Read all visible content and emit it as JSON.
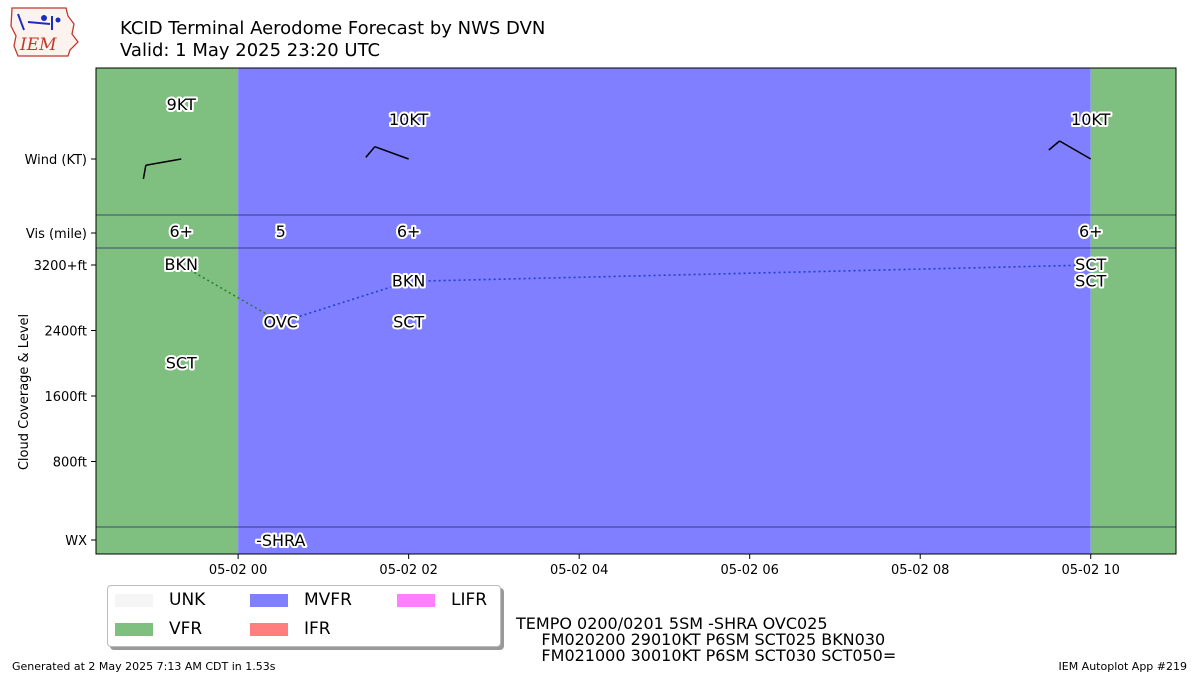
{
  "header": {
    "title": "KCID Terminal Aerodome Forecast by NWS DVN",
    "subtitle": "Valid: 1 May 2025 23:20 UTC",
    "logo_text": "IEM"
  },
  "legend": {
    "items": [
      {
        "label": "UNK",
        "color": "#f5f5f5"
      },
      {
        "label": "VFR",
        "color": "#7fbf7f"
      },
      {
        "label": "MVFR",
        "color": "#7f7fff"
      },
      {
        "label": "IFR",
        "color": "#ff7f7f"
      },
      {
        "label": "LIFR",
        "color": "#ff7fff"
      }
    ]
  },
  "taf_text": {
    "line1": "TEMPO 0200/0201 5SM -SHRA OVC025",
    "line2": "     FM020200 29010KT P6SM SCT025 BKN030",
    "line3": "     FM021000 30010KT P6SM SCT030 SCT050="
  },
  "footer": {
    "left": "Generated at 2 May 2025 7:13 AM CDT in 1.53s",
    "right": "IEM Autoplot App #219"
  },
  "chart_data": {
    "type": "timeline",
    "x_range": [
      "2025-05-01 22:20 UTC",
      "2025-05-02 11:00 UTC"
    ],
    "x_tick_labels": [
      "05-02 00",
      "05-02 02",
      "05-02 04",
      "05-02 06",
      "05-02 08",
      "05-02 10"
    ],
    "x_tick_hours": [
      0,
      2,
      4,
      6,
      8,
      10
    ],
    "x_min_hour": -1.667,
    "x_max_hour": 11.0,
    "rows": {
      "wind_label": "Wind (KT)",
      "vis_label": "Vis (mile)",
      "wx_label": "WX",
      "cloud_label": "Cloud Coverage & Level"
    },
    "cloud_y_ticks": [
      {
        "value": 800,
        "label": "800ft"
      },
      {
        "value": 1600,
        "label": "1600ft"
      },
      {
        "value": 2400,
        "label": "2400ft"
      },
      {
        "value": 3200,
        "label": "3200+ft"
      }
    ],
    "flight_category_periods": [
      {
        "start_hour": -1.667,
        "end_hour": 0,
        "category": "VFR"
      },
      {
        "start_hour": 0,
        "end_hour": 10,
        "category": "MVFR"
      },
      {
        "start_hour": 10,
        "end_hour": 11.0,
        "category": "VFR"
      }
    ],
    "wind": [
      {
        "hour": -0.667,
        "direction": 260,
        "speed_kt": 9,
        "label": "9KT"
      },
      {
        "hour": 2,
        "direction": 290,
        "speed_kt": 10,
        "label": "10KT"
      },
      {
        "hour": 10,
        "direction": 300,
        "speed_kt": 10,
        "label": "10KT"
      }
    ],
    "visibility": [
      {
        "hour": -0.667,
        "label": "6+"
      },
      {
        "hour": 0.5,
        "label": "5"
      },
      {
        "hour": 2,
        "label": "6+"
      },
      {
        "hour": 10,
        "label": "6+"
      }
    ],
    "clouds": [
      {
        "hour": -0.667,
        "level_ft": 3200,
        "coverage": "BKN"
      },
      {
        "hour": -0.667,
        "level_ft": 2000,
        "coverage": "SCT"
      },
      {
        "hour": 0.5,
        "level_ft": 2500,
        "coverage": "OVC"
      },
      {
        "hour": 2,
        "level_ft": 3000,
        "coverage": "BKN"
      },
      {
        "hour": 2,
        "level_ft": 2500,
        "coverage": "SCT"
      },
      {
        "hour": 10,
        "level_ft": 3200,
        "coverage": "SCT"
      },
      {
        "hour": 10,
        "level_ft": 3000,
        "coverage": "SCT"
      }
    ],
    "ceiling_line": [
      {
        "hour": -0.667,
        "level_ft": 3200,
        "color": "#2e7d32"
      },
      {
        "hour": 0.5,
        "level_ft": 2500,
        "color": "#1f3fd6"
      },
      {
        "hour": 2,
        "level_ft": 3000,
        "color": "#1f3fd6"
      },
      {
        "hour": 10,
        "level_ft": 3200,
        "color": "#1f3fd6"
      }
    ],
    "weather": [
      {
        "hour": 0.5,
        "label": "-SHRA"
      }
    ]
  }
}
